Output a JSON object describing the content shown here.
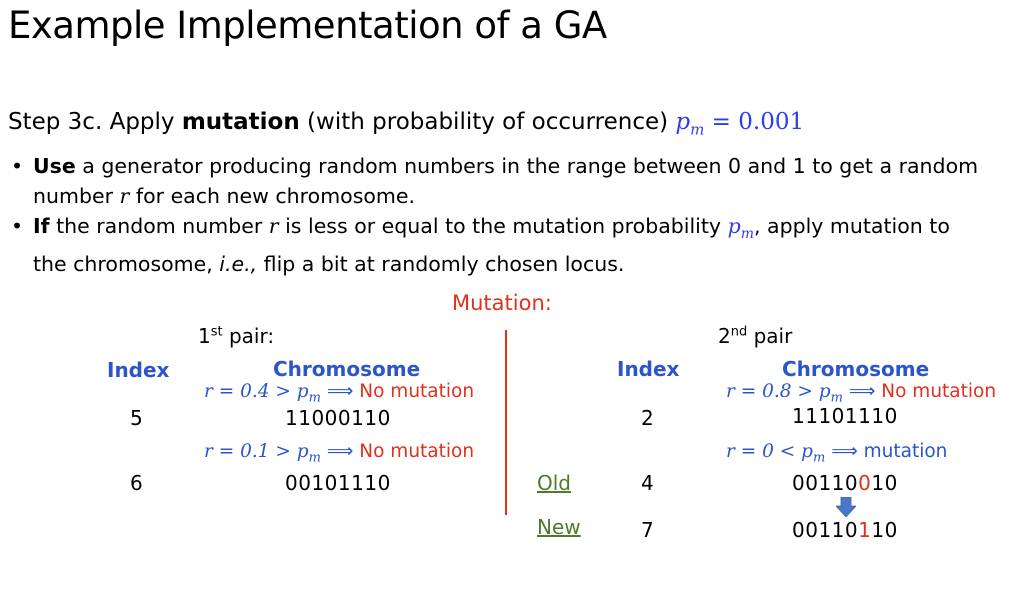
{
  "title": "Example Implementation of a GA",
  "step": {
    "prefix": "Step 3c. Apply ",
    "bold": "mutation",
    "suffix": " (with probability of occurrence) ",
    "var": "p",
    "sub": "m",
    "eq": " = 0.001"
  },
  "bullets": [
    {
      "bold": "Use",
      "line1": " a generator producing random numbers in the range between 0 and 1 to get a random",
      "line2a": "number ",
      "var": "r",
      "line2b": " for each new chromosome."
    },
    {
      "bold": "If",
      "line1a": " the random number ",
      "var": "r",
      "line1b": " is less or equal to the mutation probability ",
      "pvar": "p",
      "psub": "m",
      "line1c": ", apply mutation to",
      "line2a": "the chromosome, ",
      "ie": "i.e.,",
      "line2b": " flip a bit at randomly chosen locus."
    }
  ],
  "mutation_heading": "Mutation:",
  "left": {
    "pair_num": "1",
    "pair_sup": "st",
    "pair_rest": " pair:",
    "index_header": "Index",
    "chromosome_header": "Chromosome",
    "rows": [
      {
        "cond": "r = 0.4 > p",
        "sub": "m",
        "arrow": " ⟹ ",
        "result": "No mutation",
        "index": "5",
        "bits": "11000110"
      },
      {
        "cond": "r = 0.1 > p",
        "sub": "m",
        "arrow": " ⟹ ",
        "result": "No mutation",
        "index": "6",
        "bits": "00101110"
      }
    ]
  },
  "right": {
    "pair_num": "2",
    "pair_sup": "nd",
    "pair_rest": " pair",
    "index_header": "Index",
    "chromosome_header": "Chromosome",
    "row1": {
      "cond": "r = 0.8 > p",
      "sub": "m",
      "arrow": " ⟹ ",
      "result": "No mutation",
      "index": "2",
      "bits": "11101110"
    },
    "row2": {
      "cond": "r = 0 < p",
      "sub": "m",
      "arrow": " ⟹ ",
      "result": "mutation"
    },
    "old": {
      "label": "Old",
      "index": "4",
      "bits_a": "00110",
      "bits_b": "0",
      "bits_c": "10"
    },
    "new": {
      "label": "New",
      "index": "7",
      "bits_a": "00110",
      "bits_b": "1",
      "bits_c": "10"
    }
  },
  "colors": {
    "accent_red": "#e0301e",
    "math_blue": "#2f3cf0",
    "header_blue": "#2b55c9",
    "link_green": "#4e7a2b"
  }
}
